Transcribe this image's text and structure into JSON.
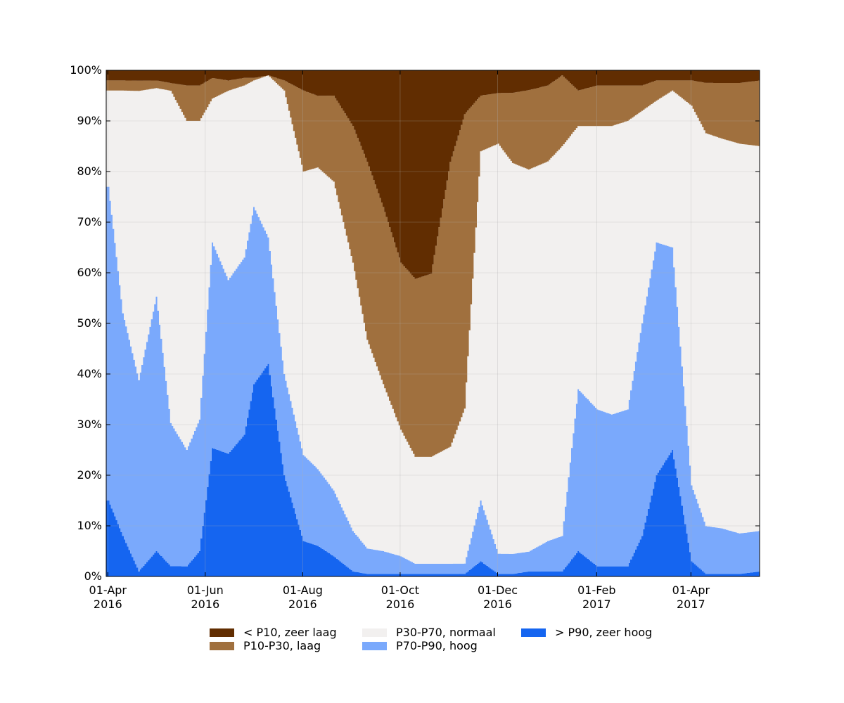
{
  "chart_data": {
    "type": "area",
    "stacked": true,
    "x_axis": {
      "type": "date",
      "range": [
        "2016-03-31",
        "2017-05-14"
      ],
      "ticks": [
        {
          "date": "2016-04-01",
          "label": [
            "01-Apr",
            "2016"
          ]
        },
        {
          "date": "2016-06-01",
          "label": [
            "01-Jun",
            "2016"
          ]
        },
        {
          "date": "2016-08-01",
          "label": [
            "01-Aug",
            "2016"
          ]
        },
        {
          "date": "2016-10-01",
          "label": [
            "01-Oct",
            "2016"
          ]
        },
        {
          "date": "2016-12-01",
          "label": [
            "01-Dec",
            "2016"
          ]
        },
        {
          "date": "2017-02-01",
          "label": [
            "01-Feb",
            "2017"
          ]
        },
        {
          "date": "2017-04-01",
          "label": [
            "01-Apr",
            "2017"
          ]
        }
      ]
    },
    "y_axis": {
      "range": [
        0,
        100
      ],
      "ticks": [
        0,
        10,
        20,
        30,
        40,
        50,
        60,
        70,
        80,
        90,
        100
      ],
      "tick_labels": [
        "0%",
        "10%",
        "20%",
        "30%",
        "40%",
        "50%",
        "60%",
        "70%",
        "80%",
        "90%",
        "100%"
      ]
    },
    "grid": true,
    "legend": {
      "placement": "bottom-center",
      "columns": 3
    },
    "dates": [
      "2016-04-01",
      "2016-04-10",
      "2016-04-20",
      "2016-05-01",
      "2016-05-10",
      "2016-05-20",
      "2016-05-28",
      "2016-06-05",
      "2016-06-15",
      "2016-06-25",
      "2016-07-01",
      "2016-07-10",
      "2016-07-20",
      "2016-08-01",
      "2016-08-10",
      "2016-08-20",
      "2016-09-01",
      "2016-09-10",
      "2016-09-20",
      "2016-10-01",
      "2016-10-10",
      "2016-10-20",
      "2016-11-01",
      "2016-11-10",
      "2016-11-20",
      "2016-12-01",
      "2016-12-10",
      "2016-12-20",
      "2017-01-01",
      "2017-01-10",
      "2017-01-20",
      "2017-02-01",
      "2017-02-10",
      "2017-02-20",
      "2017-03-01",
      "2017-03-10",
      "2017-03-20",
      "2017-04-01",
      "2017-04-10",
      "2017-04-20",
      "2017-05-01",
      "2017-05-14"
    ],
    "series": [
      {
        "name": "> P90, zeer hoog",
        "color": "#1565f0",
        "values": [
          15,
          8,
          1,
          5,
          2,
          2,
          5,
          25,
          24,
          28,
          38,
          42,
          20,
          7,
          6,
          4,
          1,
          0.5,
          0.5,
          0.5,
          0.5,
          0.5,
          0.5,
          0.5,
          3,
          0.5,
          0.5,
          1,
          1,
          1,
          5,
          2,
          2,
          2,
          8,
          20,
          25,
          3,
          0.5,
          0.5,
          0.5,
          1
        ]
      },
      {
        "name": "P70-P90, hoog",
        "color": "#7aa9fc",
        "values": [
          62,
          44,
          37,
          50,
          28,
          23,
          26,
          40,
          34,
          35,
          35,
          25,
          20,
          17,
          15,
          13,
          8,
          5,
          4.5,
          3.5,
          2,
          2,
          2,
          2,
          12,
          4,
          4,
          4,
          6,
          7,
          32,
          31,
          30,
          31,
          42,
          46,
          40,
          15,
          9.5,
          9,
          8,
          8
        ]
      },
      {
        "name": "P30-P70, normaal",
        "color": "#f2f0ef",
        "values": [
          19,
          44,
          56,
          41,
          65,
          65,
          59,
          28,
          37,
          34,
          25,
          32,
          56,
          56,
          59,
          61,
          53,
          41,
          33,
          25,
          21,
          21,
          23,
          30,
          69,
          81,
          78,
          77,
          75,
          77,
          52,
          56,
          57,
          57,
          42,
          28,
          31,
          75,
          78,
          77,
          77,
          76
        ]
      },
      {
        "name": "P10-P30, laag",
        "color": "#a0703e",
        "values": [
          2,
          2,
          2,
          1.5,
          1.5,
          7,
          7,
          4,
          2,
          1.5,
          0.5,
          0,
          2,
          16,
          14,
          17,
          27,
          35,
          35,
          33,
          35,
          36,
          56,
          57,
          11,
          10,
          14,
          16,
          15,
          14,
          7,
          8,
          8,
          7,
          5,
          4,
          2,
          5,
          10,
          11,
          12,
          13
        ]
      },
      {
        "name": "< P10, zeer laag",
        "color": "#612d01",
        "values": [
          2,
          2,
          2,
          2,
          2.5,
          3,
          3,
          1.5,
          2,
          1.5,
          1.5,
          1,
          2,
          4,
          5,
          5,
          11,
          18,
          27,
          38,
          41,
          40,
          18,
          8.5,
          5,
          4.5,
          4.5,
          4,
          3,
          1,
          4,
          3,
          3,
          3,
          3,
          2,
          2,
          2,
          2.5,
          2.5,
          2.5,
          2
        ]
      }
    ]
  }
}
